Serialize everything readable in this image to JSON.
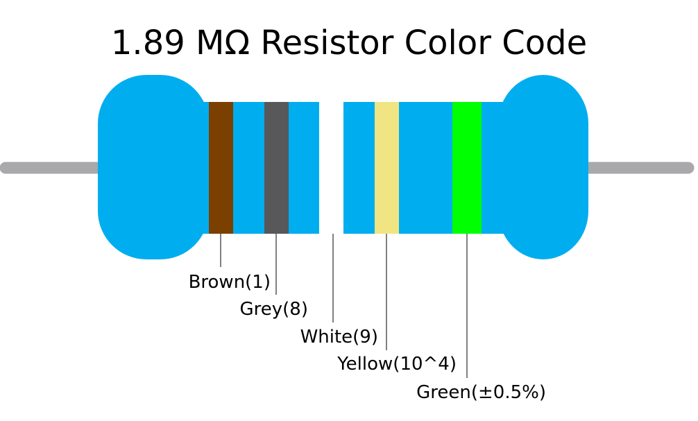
{
  "title": "1.89 MΩ Resistor Color Code",
  "colors": {
    "background": "#ffffff",
    "body": "#00adef",
    "lead": "#a9a9ab",
    "leader_line": "#000000",
    "text": "#000000"
  },
  "bands": [
    {
      "name": "Brown",
      "value_label": "Brown(1)",
      "color": "#7b3f00"
    },
    {
      "name": "Grey",
      "value_label": "Grey(8)",
      "color": "#58575a"
    },
    {
      "name": "White",
      "value_label": "White(9)",
      "color": "#ffffff"
    },
    {
      "name": "Yellow",
      "value_label": "Yellow(10^4)",
      "color": "#f0e582"
    },
    {
      "name": "Green",
      "value_label": "Green(±0.5%)",
      "color": "#00ff00"
    }
  ]
}
